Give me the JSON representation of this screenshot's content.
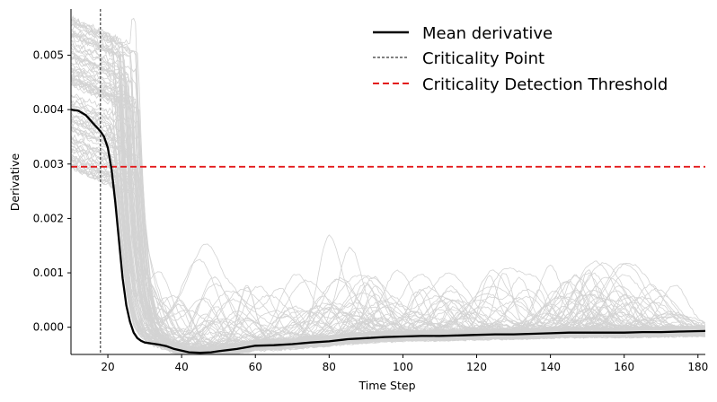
{
  "chart_data": {
    "type": "line",
    "title": "",
    "xlabel": "Time Step",
    "ylabel": "Derivative",
    "xlim": [
      10,
      182
    ],
    "ylim": [
      -0.0005,
      0.00585
    ],
    "x_ticks": [
      20,
      40,
      60,
      80,
      100,
      120,
      140,
      160,
      180
    ],
    "x_tick_labels": [
      "20",
      "40",
      "60",
      "80",
      "100",
      "120",
      "140",
      "160",
      "180"
    ],
    "y_ticks": [
      0.0,
      0.001,
      0.002,
      0.003,
      0.004,
      0.005
    ],
    "y_tick_labels": [
      "0.000",
      "0.001",
      "0.002",
      "0.003",
      "0.004",
      "0.005"
    ],
    "grid": false,
    "legend_position": "top-right",
    "colors": {
      "mean": "#000000",
      "individual": "#d3d3d3",
      "criticality_point": "#000000",
      "threshold": "#e31a1c"
    },
    "mean_series": {
      "name": "Mean derivative",
      "x": [
        10,
        12,
        14,
        16,
        18,
        19,
        20,
        21,
        22,
        23,
        24,
        25,
        26,
        27,
        28,
        29,
        30,
        32,
        34,
        36,
        38,
        40,
        42,
        45,
        48,
        50,
        55,
        60,
        65,
        70,
        75,
        80,
        85,
        90,
        95,
        100,
        105,
        110,
        115,
        120,
        125,
        130,
        135,
        140,
        145,
        150,
        155,
        160,
        165,
        170,
        175,
        182
      ],
      "y": [
        0.004,
        0.00398,
        0.0039,
        0.00375,
        0.0036,
        0.0035,
        0.0033,
        0.0029,
        0.0023,
        0.0016,
        0.0009,
        0.0004,
        0.0001,
        -0.0001,
        -0.0002,
        -0.00025,
        -0.00028,
        -0.0003,
        -0.00032,
        -0.00035,
        -0.0004,
        -0.00043,
        -0.00046,
        -0.00047,
        -0.00046,
        -0.00044,
        -0.0004,
        -0.00034,
        -0.00033,
        -0.00031,
        -0.00028,
        -0.00026,
        -0.00022,
        -0.0002,
        -0.00018,
        -0.00017,
        -0.00016,
        -0.00016,
        -0.00015,
        -0.00014,
        -0.00013,
        -0.00013,
        -0.00012,
        -0.00011,
        -0.0001,
        -0.0001,
        -0.0001,
        -0.0001,
        -9e-05,
        -9e-05,
        -8e-05,
        -7e-05
      ]
    },
    "criticality_point": {
      "name": "Criticality Point",
      "x": 18
    },
    "threshold": {
      "name": "Criticality Detection Threshold",
      "y": 0.00295
    },
    "individual_series": {
      "count": 100,
      "color": "#d3d3d3"
    }
  },
  "legend": [
    {
      "label": "Mean derivative",
      "style": "solid-black"
    },
    {
      "label": "Criticality Point",
      "style": "dashed-thin-black"
    },
    {
      "label": "Criticality Detection Threshold",
      "style": "dashed-red"
    }
  ]
}
